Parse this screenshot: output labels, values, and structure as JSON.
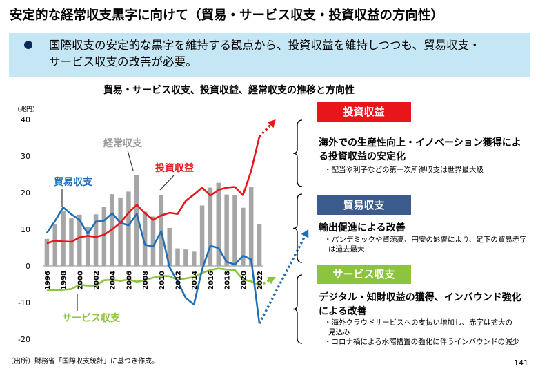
{
  "title": "安定的な経常収支黒字に向けて（貿易・サービス収支・投資収益の方向性）",
  "summary": {
    "line1": "国際収支の安定的な黒字を維持する観点から、投資収益を維持しつつも、貿易収支・",
    "line2": "サービス収支の改善が必要。"
  },
  "colors": {
    "investment": "#e8151b",
    "trade": "#1f6fb8",
    "services": "#8dc43f",
    "current": "#a6a6a6",
    "box_investment": "#e8151b",
    "box_trade": "#3a5b8c",
    "box_services": "#8dc43f"
  },
  "chart_data": {
    "type": "bar",
    "title": "貿易・サービス収支、投資収益、経常収支の推移と方向性",
    "ylabel": "（兆円）",
    "ylim": [
      -20,
      40
    ],
    "yticks": [
      40,
      30,
      20,
      10,
      0,
      -10,
      -20
    ],
    "x": [
      1996,
      1997,
      1998,
      1999,
      2000,
      2001,
      2002,
      2003,
      2004,
      2005,
      2006,
      2007,
      2008,
      2009,
      2010,
      2011,
      2012,
      2013,
      2014,
      2015,
      2016,
      2017,
      2018,
      2019,
      2020,
      2021,
      2022
    ],
    "xtick_labels": [
      "1996",
      "1998",
      "2000",
      "2002",
      "2004",
      "2006",
      "2008",
      "2010",
      "2012",
      "2014",
      "2016",
      "2018",
      "2020",
      "2022"
    ],
    "series": [
      {
        "name": "経常収支",
        "kind": "bar",
        "values": [
          7.4,
          11.5,
          14.9,
          13.0,
          14.0,
          10.7,
          14.1,
          16.1,
          19.6,
          18.7,
          20.3,
          24.9,
          14.8,
          13.5,
          19.4,
          10.4,
          4.8,
          4.5,
          3.9,
          16.5,
          21.4,
          22.7,
          19.5,
          19.3,
          15.9,
          21.5,
          11.4
        ]
      },
      {
        "name": "投資収益",
        "kind": "line",
        "values": [
          6.2,
          6.9,
          6.7,
          6.6,
          7.8,
          8.2,
          7.9,
          8.5,
          10.0,
          11.8,
          14.5,
          16.7,
          14.4,
          12.6,
          13.8,
          14.5,
          14.2,
          17.8,
          19.5,
          21.4,
          19.2,
          20.8,
          21.4,
          21.6,
          19.3,
          26.0,
          35.3
        ],
        "projection": [
          [
            2022,
            35.3
          ],
          [
            2024,
            40.0
          ]
        ]
      },
      {
        "name": "貿易収支",
        "kind": "line",
        "values": [
          9.0,
          12.3,
          16.0,
          14.1,
          12.6,
          8.8,
          12.1,
          12.4,
          14.4,
          11.8,
          11.1,
          14.2,
          5.8,
          5.3,
          9.5,
          -0.3,
          -4.3,
          -8.8,
          -10.5,
          -0.9,
          5.5,
          4.9,
          1.1,
          0.4,
          2.8,
          1.8,
          -15.7
        ],
        "projection": [
          [
            2022,
            -15.7
          ],
          [
            2028,
            10.0
          ]
        ]
      },
      {
        "name": "サービス収支",
        "kind": "line",
        "values": [
          -6.7,
          -6.6,
          -6.5,
          -6.3,
          -5.1,
          -5.4,
          -5.4,
          -3.9,
          -3.8,
          -4.1,
          -3.7,
          -4.3,
          -3.9,
          -3.2,
          -2.7,
          -2.8,
          -3.8,
          -3.4,
          -3.0,
          -1.9,
          -1.1,
          -0.7,
          -1.0,
          -1.1,
          -3.7,
          -4.2,
          -5.4
        ],
        "projection": [
          [
            2022,
            -5.4
          ],
          [
            2024,
            -3.0
          ]
        ]
      }
    ],
    "series_labels": {
      "current": "経常収支",
      "investment": "投資収益",
      "trade": "貿易収支",
      "services": "サービス収支"
    }
  },
  "panels": {
    "investment": {
      "label": "投資収益",
      "head1": "海外での生産性向上・イノベーション獲得によ",
      "head2": "る投資収益の安定化",
      "sub1": "・配当や利子などの第一次所得収支は世界最大級"
    },
    "trade": {
      "label": "貿易収支",
      "head1": "輸出促進による改善",
      "sub1": "・パンデミックや資源高、円安の影響により、足下の貿易赤字",
      "sub2": "は過去最大"
    },
    "services": {
      "label": "サービス収支",
      "head1": "デジタル・知財収益の獲得、インバウンド強化",
      "head2": "による改善",
      "sub1": "・海外クラウドサービスへの支払い増加し、赤字は拡大の",
      "sub2": "見込み",
      "sub3": "・コロナ禍による水際措置の強化に伴うインバウンドの減少"
    }
  },
  "source": "（出所）財務省「国際収支統計」に基づき作成。",
  "page_number": "141"
}
